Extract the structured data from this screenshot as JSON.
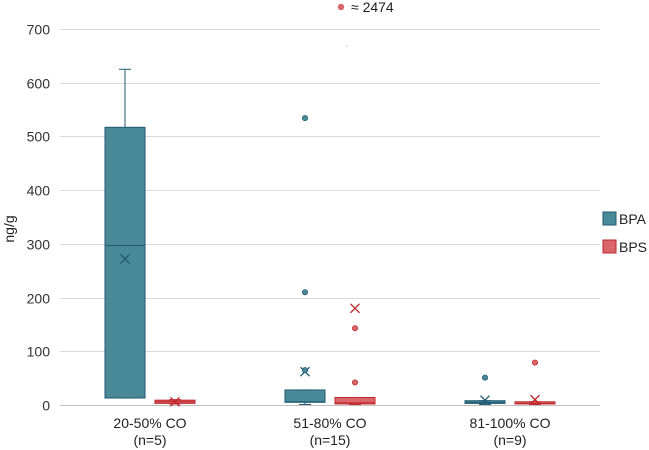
{
  "chart_data": {
    "type": "box",
    "title": "",
    "xlabel": "",
    "ylabel": "ng/g",
    "ylim": [
      0,
      700
    ],
    "yticks": [
      0,
      100,
      200,
      300,
      400,
      500,
      600,
      700
    ],
    "grid": true,
    "legend_position": "right",
    "categories": [
      {
        "line1": "20-50% CO",
        "line2": "(n=5)"
      },
      {
        "line1": "51-80% CO",
        "line2": "(n=15)"
      },
      {
        "line1": "81-100% CO",
        "line2": "(n=9)"
      }
    ],
    "series": [
      {
        "name": "BPA",
        "color": "#4a8a98",
        "edge": "#1f5a72",
        "boxes": [
          {
            "whisker_low": 13,
            "q1": 13,
            "median": 297,
            "q3": 517,
            "whisker_high": 625,
            "mean": 272,
            "outliers": []
          },
          {
            "whisker_low": 1,
            "q1": 5,
            "median": 6,
            "q3": 28,
            "whisker_high": 28,
            "mean": 62,
            "outliers": [
              65,
              210,
              534
            ]
          },
          {
            "whisker_low": 1,
            "q1": 3,
            "median": 5,
            "q3": 8,
            "whisker_high": 8,
            "mean": 9,
            "outliers": [
              51
            ]
          }
        ]
      },
      {
        "name": "BPS",
        "color": "#d9666b",
        "edge": "#c0272d",
        "boxes": [
          {
            "whisker_low": 2,
            "q1": 3,
            "median": 6,
            "q3": 9,
            "whisker_high": 10,
            "mean": 6,
            "outliers": []
          },
          {
            "whisker_low": 1,
            "q1": 2,
            "median": 4,
            "q3": 14,
            "whisker_high": 14,
            "mean": 180,
            "outliers": [
              42,
              143
            ]
          },
          {
            "whisker_low": 1,
            "q1": 2,
            "median": 3,
            "q3": 6,
            "whisker_high": 6,
            "mean": 10,
            "outliers": [
              79
            ]
          }
        ]
      }
    ],
    "annotation": {
      "text": "≈ 2474",
      "series": "BPS"
    }
  }
}
